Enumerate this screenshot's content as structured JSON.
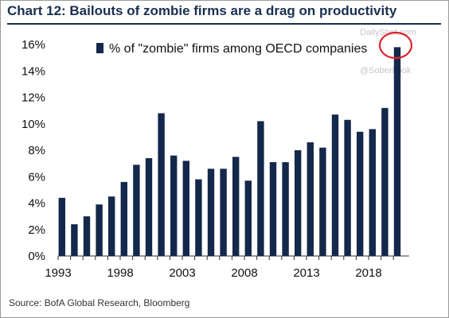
{
  "chart_data": {
    "type": "bar",
    "title": "Chart 12: Bailouts of zombie firms are a drag on productivity",
    "source": "Source: BofA Global Research, Bloomberg",
    "xlabel": "",
    "ylabel": "",
    "ylim": [
      0,
      16
    ],
    "yticks": [
      "0%",
      "2%",
      "4%",
      "6%",
      "8%",
      "10%",
      "12%",
      "14%",
      "16%"
    ],
    "xticks": [
      "1993",
      "1998",
      "2003",
      "2008",
      "2013",
      "2018"
    ],
    "grid": false,
    "legend_position": "top",
    "bar_color": "#13284b",
    "categories": [
      "1993",
      "1994",
      "1995",
      "1996",
      "1997",
      "1998",
      "1999",
      "2000",
      "2001",
      "2002",
      "2003",
      "2004",
      "2005",
      "2006",
      "2007",
      "2008",
      "2009",
      "2010",
      "2011",
      "2012",
      "2013",
      "2014",
      "2015",
      "2016",
      "2017",
      "2018",
      "2019",
      "2020"
    ],
    "series": [
      {
        "name": "% of \"zombie\" firms among OECD companies",
        "values": [
          4.4,
          2.4,
          3.0,
          3.9,
          4.5,
          5.6,
          6.9,
          7.4,
          10.8,
          7.6,
          7.2,
          5.8,
          6.6,
          6.6,
          7.5,
          5.7,
          10.2,
          7.1,
          7.1,
          8.0,
          8.6,
          8.2,
          10.7,
          10.3,
          9.4,
          9.6,
          11.2,
          15.8
        ]
      }
    ],
    "annotation": {
      "type": "circle",
      "color": "#e0202a",
      "target_category": "2020"
    }
  },
  "watermarks": {
    "site": "DailyShot.com",
    "handle": "@SoberLook"
  }
}
